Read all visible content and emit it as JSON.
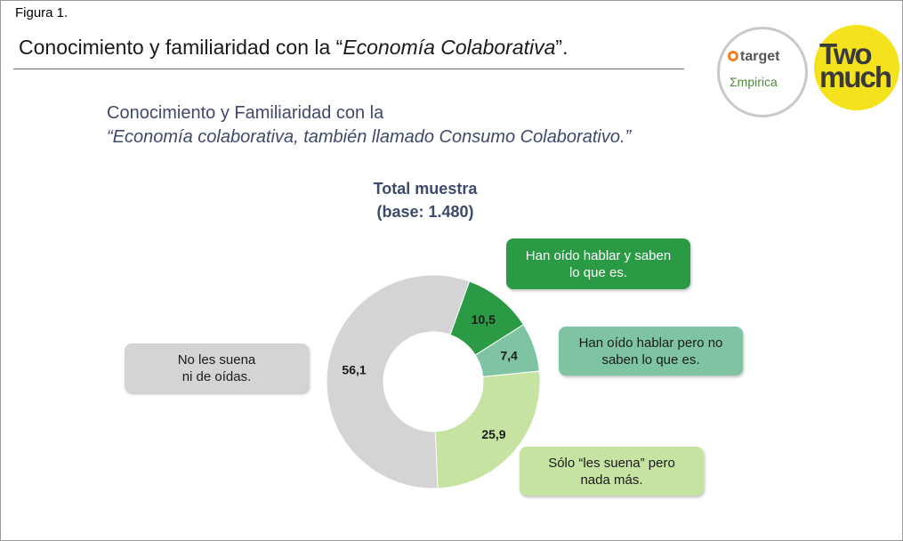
{
  "figure_label": "Figura 1.",
  "main_title": {
    "prefix": "Conocimiento y familiaridad con la “",
    "italic": "Economía Colaborativa",
    "suffix": "”."
  },
  "logos": {
    "target": "target",
    "empirica": "Σmpirica",
    "twomuch_line1": "Two",
    "twomuch_line2": "much"
  },
  "colors": {
    "green": "#2a9a45",
    "teal": "#7fc4a2",
    "lime": "#c6e3a2",
    "grey": "#d4d4d4",
    "title_blue": "#3e4a6b"
  },
  "chart_data": {
    "type": "pie",
    "title": "Conocimiento y Familiaridad con la",
    "subtitle": "“Economía colaborativa, también llamado Consumo Colaborativo.”",
    "base_line1": "Total muestra",
    "base_line2": "(base: 1.480)",
    "donut": true,
    "slices": [
      {
        "label_line1": "Han oído hablar y saben",
        "label_line2": "lo que es.",
        "value": 10.5,
        "value_text": "10,5",
        "color": "#2a9a45",
        "text_color": "#1a1a1a"
      },
      {
        "label_line1": "Han oído hablar pero no",
        "label_line2": "saben lo que es.",
        "value": 7.4,
        "value_text": "7,4",
        "color": "#7fc4a2",
        "text_color": "#1a1a1a"
      },
      {
        "label_line1": "Sólo “les suena” pero",
        "label_line2": "nada más.",
        "value": 25.9,
        "value_text": "25,9",
        "color": "#c6e3a2",
        "text_color": "#1a1a1a"
      },
      {
        "label_line1": "No les suena",
        "label_line2": "ni de oídas.",
        "value": 56.1,
        "value_text": "56,1",
        "color": "#d4d4d4",
        "text_color": "#1a1a1a"
      }
    ]
  }
}
